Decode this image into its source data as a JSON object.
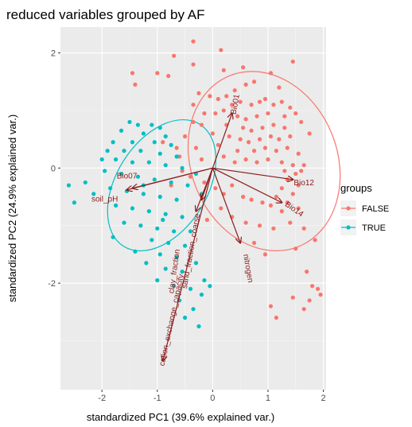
{
  "chart_data": {
    "type": "scatter",
    "title": "reduced variables grouped by AF",
    "xlabel": "standardized PC1 (39.6% explained var.)",
    "ylabel": "standardized PC2 (24.9% explained var.)",
    "xlim": [
      -2.75,
      2.05
    ],
    "ylim": [
      -3.85,
      2.45
    ],
    "xticks": [
      -2,
      -1,
      0,
      1,
      2
    ],
    "yticks": [
      -2,
      0,
      2
    ],
    "grid": true,
    "legend": {
      "title": "groups",
      "position": "right",
      "entries": [
        {
          "label": "FALSE",
          "color": "#F8766D"
        },
        {
          "label": "TRUE",
          "color": "#00BFC4"
        }
      ]
    },
    "series": [
      {
        "name": "FALSE",
        "color": "#F8766D",
        "ellipse": {
          "cx": 0.93,
          "cy": 0.12,
          "rx": 1.32,
          "ry": 1.6,
          "angle_deg": -22
        },
        "points": [
          [
            -0.35,
            2.2
          ],
          [
            0.15,
            2.05
          ],
          [
            -0.7,
            1.95
          ],
          [
            0.55,
            1.75
          ],
          [
            1.05,
            1.65
          ],
          [
            1.45,
            1.85
          ],
          [
            -0.35,
            1.8
          ],
          [
            -1.0,
            1.65
          ],
          [
            -0.8,
            1.6
          ],
          [
            -1.45,
            1.65
          ],
          [
            -1.4,
            1.45
          ],
          [
            0.2,
            1.7
          ],
          [
            0.6,
            1.45
          ],
          [
            0.75,
            1.5
          ],
          [
            1.2,
            1.4
          ],
          [
            0.4,
            1.35
          ],
          [
            0.25,
            1.25
          ],
          [
            0.1,
            1.2
          ],
          [
            -0.05,
            1.25
          ],
          [
            -0.25,
            1.3
          ],
          [
            -0.35,
            1.1
          ],
          [
            0.35,
            1.1
          ],
          [
            0.5,
            1.15
          ],
          [
            0.7,
            1.1
          ],
          [
            0.85,
            1.15
          ],
          [
            0.95,
            1.2
          ],
          [
            1.1,
            1.1
          ],
          [
            1.25,
            1.15
          ],
          [
            1.4,
            1.05
          ],
          [
            0.2,
            1.0
          ],
          [
            0.05,
            0.95
          ],
          [
            -0.15,
            0.95
          ],
          [
            0.45,
            0.9
          ],
          [
            0.6,
            0.85
          ],
          [
            0.8,
            0.9
          ],
          [
            1.0,
            0.95
          ],
          [
            1.3,
            0.9
          ],
          [
            1.5,
            0.95
          ],
          [
            -0.35,
            0.8
          ],
          [
            -0.2,
            0.75
          ],
          [
            0.25,
            0.75
          ],
          [
            0.55,
            0.7
          ],
          [
            0.7,
            0.65
          ],
          [
            0.9,
            0.7
          ],
          [
            1.1,
            0.75
          ],
          [
            1.3,
            0.7
          ],
          [
            1.6,
            0.8
          ],
          [
            -0.5,
            0.55
          ],
          [
            0.0,
            0.6
          ],
          [
            0.3,
            0.55
          ],
          [
            0.5,
            0.5
          ],
          [
            0.65,
            0.45
          ],
          [
            0.85,
            0.5
          ],
          [
            1.05,
            0.55
          ],
          [
            1.2,
            0.5
          ],
          [
            1.4,
            0.55
          ],
          [
            1.75,
            0.6
          ],
          [
            -0.3,
            0.35
          ],
          [
            0.1,
            0.4
          ],
          [
            0.45,
            0.3
          ],
          [
            0.75,
            0.3
          ],
          [
            0.95,
            0.35
          ],
          [
            1.15,
            0.3
          ],
          [
            1.35,
            0.35
          ],
          [
            1.55,
            0.25
          ],
          [
            -0.6,
            0.2
          ],
          [
            -0.2,
            0.15
          ],
          [
            0.2,
            0.2
          ],
          [
            0.4,
            0.1
          ],
          [
            0.6,
            0.15
          ],
          [
            0.8,
            0.1
          ],
          [
            1.0,
            0.15
          ],
          [
            1.25,
            0.1
          ],
          [
            1.45,
            0.05
          ],
          [
            1.6,
            -0.05
          ],
          [
            1.3,
            -0.05
          ],
          [
            1.5,
            -0.1
          ],
          [
            1.35,
            -0.2
          ],
          [
            1.55,
            -0.3
          ],
          [
            1.25,
            -0.35
          ],
          [
            1.45,
            -0.45
          ],
          [
            1.15,
            -0.5
          ],
          [
            1.35,
            -0.6
          ],
          [
            1.05,
            -0.65
          ],
          [
            1.25,
            -0.75
          ],
          [
            0.9,
            -0.6
          ],
          [
            0.7,
            -0.55
          ],
          [
            0.55,
            -0.5
          ],
          [
            0.35,
            -0.3
          ],
          [
            0.2,
            -0.45
          ],
          [
            0.05,
            -0.35
          ],
          [
            -0.15,
            -0.25
          ],
          [
            -0.4,
            -0.15
          ],
          [
            -0.55,
            -0.05
          ],
          [
            -0.75,
            -0.3
          ],
          [
            -0.65,
            0.35
          ],
          [
            0.15,
            -0.7
          ],
          [
            0.35,
            -0.85
          ],
          [
            0.6,
            -0.95
          ],
          [
            0.85,
            -1.0
          ],
          [
            1.1,
            -1.05
          ],
          [
            1.4,
            -0.95
          ],
          [
            1.65,
            -1.05
          ],
          [
            1.85,
            -1.25
          ],
          [
            1.5,
            -1.4
          ],
          [
            0.75,
            -1.3
          ],
          [
            0.95,
            -1.5
          ],
          [
            1.7,
            -1.8
          ],
          [
            1.8,
            -2.05
          ],
          [
            1.45,
            -2.25
          ],
          [
            1.75,
            -2.3
          ],
          [
            1.9,
            -2.1
          ],
          [
            1.65,
            -2.45
          ],
          [
            1.95,
            -2.2
          ],
          [
            1.05,
            -2.4
          ],
          [
            1.15,
            -2.6
          ],
          [
            1.55,
            -0.7
          ],
          [
            1.65,
            0.05
          ],
          [
            -0.9,
            0.45
          ],
          [
            -0.1,
            -0.9
          ]
        ]
      },
      {
        "name": "TRUE",
        "color": "#00BFC4",
        "ellipse": {
          "cx": -0.92,
          "cy": -0.3,
          "rx": 0.82,
          "ry": 1.25,
          "angle_deg": 32
        },
        "points": [
          [
            -1.5,
            0.8
          ],
          [
            -1.35,
            0.75
          ],
          [
            -1.1,
            0.75
          ],
          [
            -0.95,
            0.7
          ],
          [
            -1.65,
            0.65
          ],
          [
            -1.25,
            0.6
          ],
          [
            -0.85,
            0.55
          ],
          [
            -1.8,
            0.45
          ],
          [
            -1.45,
            0.45
          ],
          [
            -1.05,
            0.45
          ],
          [
            -0.75,
            0.4
          ],
          [
            -1.9,
            0.3
          ],
          [
            -1.6,
            0.3
          ],
          [
            -1.3,
            0.3
          ],
          [
            -0.95,
            0.25
          ],
          [
            -0.65,
            0.2
          ],
          [
            -2.0,
            0.15
          ],
          [
            -1.75,
            0.15
          ],
          [
            -1.45,
            0.1
          ],
          [
            -1.15,
            0.1
          ],
          [
            -0.85,
            0.05
          ],
          [
            -0.55,
            0.0
          ],
          [
            -1.95,
            -0.05
          ],
          [
            -1.65,
            -0.1
          ],
          [
            -1.35,
            -0.15
          ],
          [
            -1.05,
            -0.2
          ],
          [
            -0.75,
            -0.25
          ],
          [
            -0.45,
            -0.3
          ],
          [
            -2.3,
            -0.25
          ],
          [
            -2.6,
            -0.3
          ],
          [
            -1.85,
            -0.35
          ],
          [
            -1.55,
            -0.4
          ],
          [
            -1.25,
            -0.45
          ],
          [
            -0.95,
            -0.5
          ],
          [
            -0.65,
            -0.55
          ],
          [
            -2.5,
            -0.6
          ],
          [
            -1.75,
            -0.65
          ],
          [
            -1.45,
            -0.7
          ],
          [
            -1.15,
            -0.75
          ],
          [
            -0.85,
            -0.8
          ],
          [
            -0.55,
            -0.85
          ],
          [
            -1.6,
            -0.95
          ],
          [
            -1.3,
            -1.0
          ],
          [
            -1.0,
            -1.05
          ],
          [
            -0.7,
            -1.1
          ],
          [
            -0.4,
            -1.1
          ],
          [
            -1.8,
            -1.2
          ],
          [
            -1.1,
            -1.25
          ],
          [
            -0.8,
            -1.3
          ],
          [
            -0.5,
            -1.35
          ],
          [
            -1.4,
            -1.45
          ],
          [
            -0.95,
            -1.5
          ],
          [
            -0.65,
            -1.55
          ],
          [
            -1.2,
            -1.65
          ],
          [
            -0.85,
            -1.75
          ],
          [
            -0.55,
            -1.8
          ],
          [
            -0.3,
            -1.65
          ],
          [
            -1.0,
            -1.95
          ],
          [
            -0.7,
            -2.05
          ],
          [
            -0.4,
            -2.1
          ],
          [
            -0.15,
            -1.95
          ],
          [
            -0.6,
            -2.3
          ],
          [
            -0.35,
            -2.45
          ],
          [
            -0.2,
            -2.2
          ],
          [
            -0.05,
            -2.05
          ],
          [
            -0.5,
            -2.6
          ],
          [
            -0.25,
            -2.75
          ],
          [
            -0.3,
            -0.1
          ],
          [
            -0.2,
            -0.45
          ],
          [
            -1.25,
            -0.3
          ],
          [
            -0.9,
            -0.9
          ],
          [
            -2.15,
            -0.45
          ]
        ]
      }
    ],
    "vectors": [
      {
        "name": "Bio07",
        "x": -1.45,
        "y": -0.35,
        "label_x": -1.55,
        "label_y": -0.18,
        "label_angle": 0
      },
      {
        "name": "soil_pH",
        "x": -1.55,
        "y": -0.38,
        "label_x": -1.95,
        "label_y": -0.58,
        "label_angle": 0
      },
      {
        "name": "Bio01",
        "x": 0.35,
        "y": 0.95,
        "label_x": 0.45,
        "label_y": 1.1,
        "label_angle": -80
      },
      {
        "name": "Bio12",
        "x": 1.45,
        "y": -0.2,
        "label_x": 1.65,
        "label_y": -0.3,
        "label_angle": 0
      },
      {
        "name": "Bio14",
        "x": 1.25,
        "y": -0.6,
        "label_x": 1.45,
        "label_y": -0.75,
        "label_angle": 35
      },
      {
        "name": "nitrogen",
        "x": 0.5,
        "y": -1.3,
        "label_x": 0.6,
        "label_y": -1.75,
        "label_angle": 80
      },
      {
        "name": "clay_fraction",
        "x": -0.3,
        "y": -0.75,
        "label_x": -0.65,
        "label_y": -1.8,
        "label_angle": -82
      },
      {
        "name": "sand_fraction_coarse",
        "x": -0.2,
        "y": -0.55,
        "label_x": -0.35,
        "label_y": -1.45,
        "label_angle": -80
      },
      {
        "name": "cation_exchange_capacity",
        "x": -0.9,
        "y": -3.35,
        "label_x": -0.7,
        "label_y": -2.65,
        "label_angle": -78
      }
    ]
  }
}
